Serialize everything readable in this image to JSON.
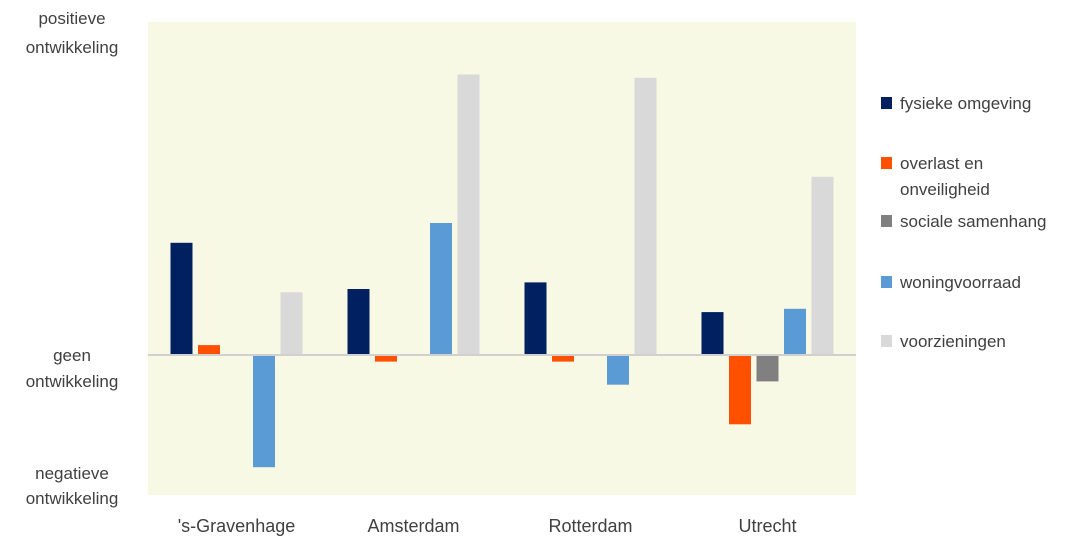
{
  "chart_data": {
    "type": "bar",
    "categories": [
      "'s-Gravenhage",
      "Amsterdam",
      "Rotterdam",
      "Utrecht"
    ],
    "y_annotations": {
      "top": [
        "positieve",
        "ontwikkeling"
      ],
      "middle": [
        "geen",
        "ontwikkeling"
      ],
      "bottom": [
        "negatieve",
        "ontwikkeling"
      ]
    },
    "ylim": [
      -1,
      1
    ],
    "legend_position": "right",
    "plot_background": "#f7f9e4",
    "series": [
      {
        "name": "fysieke omgeving",
        "name_lines": [
          "fysieke omgeving"
        ],
        "color": "#002060",
        "values": [
          0.34,
          0.2,
          0.22,
          0.13
        ]
      },
      {
        "name": "overlast en onveiligheid",
        "name_lines": [
          "overlast en",
          "onveiligheid"
        ],
        "color": "#ff5000",
        "values": [
          0.03,
          -0.02,
          -0.02,
          -0.21
        ]
      },
      {
        "name": "sociale samenhang",
        "name_lines": [
          "sociale samenhang"
        ],
        "color": "#808080",
        "values": [
          0,
          0,
          0,
          -0.08
        ]
      },
      {
        "name": "woningvoorraad",
        "name_lines": [
          "woningvoorraad"
        ],
        "color": "#5b9bd5",
        "values": [
          -0.34,
          0.4,
          -0.09,
          0.14
        ]
      },
      {
        "name": "voorzieningen",
        "name_lines": [
          "voorzieningen"
        ],
        "color": "#d9d9d9",
        "values": [
          0.19,
          0.85,
          0.84,
          0.54
        ]
      }
    ]
  }
}
